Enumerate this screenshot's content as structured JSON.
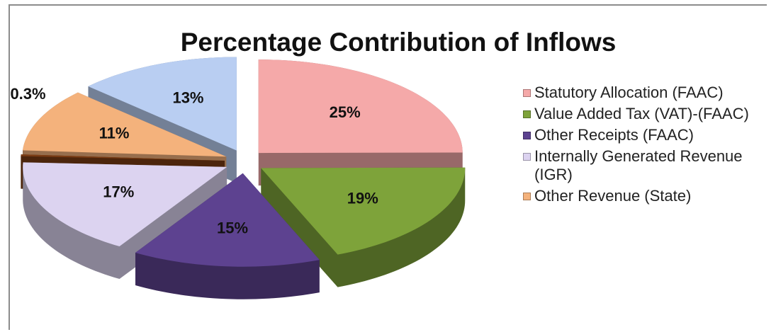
{
  "chart_data": {
    "type": "pie",
    "title": "Percentage Contribution of Inflows",
    "categories": [
      "Statutory Allocation (FAAC)",
      "Value Added Tax (VAT)-(FAAC)",
      "Other Receipts (FAAC)",
      "Internally Generated Revenue (IGR)",
      null,
      "Other Revenue (State)",
      null
    ],
    "values": [
      25,
      19,
      15,
      17,
      0.3,
      11,
      13
    ],
    "value_labels": [
      "25%",
      "19%",
      "15%",
      "17%",
      "0.3%",
      "11%",
      "13%"
    ],
    "colors": [
      "#f5a9a9",
      "#7ea33a",
      "#5d4290",
      "#dcd3f0",
      "#7b3c14",
      "#f4b27c",
      "#b9cef2"
    ],
    "legend_position": "right"
  }
}
